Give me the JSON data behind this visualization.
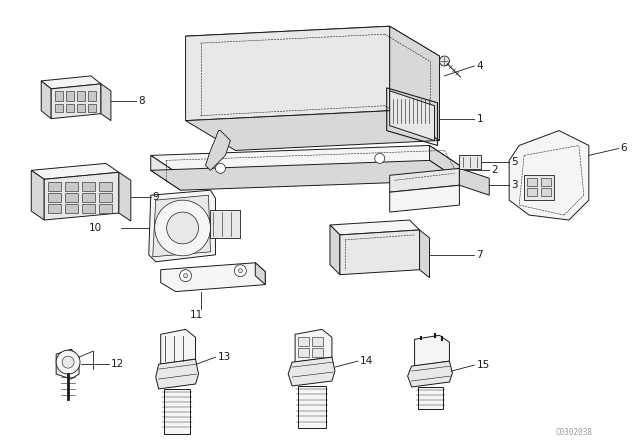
{
  "bg_color": "#ffffff",
  "line_color": "#1a1a1a",
  "watermark": "C0302038",
  "fig_width": 6.4,
  "fig_height": 4.48,
  "dpi": 100,
  "lw": 0.7,
  "fill_light": "#f5f5f5",
  "fill_mid": "#e8e8e8",
  "fill_dark": "#d8d8d8",
  "fill_darker": "#c8c8c8"
}
